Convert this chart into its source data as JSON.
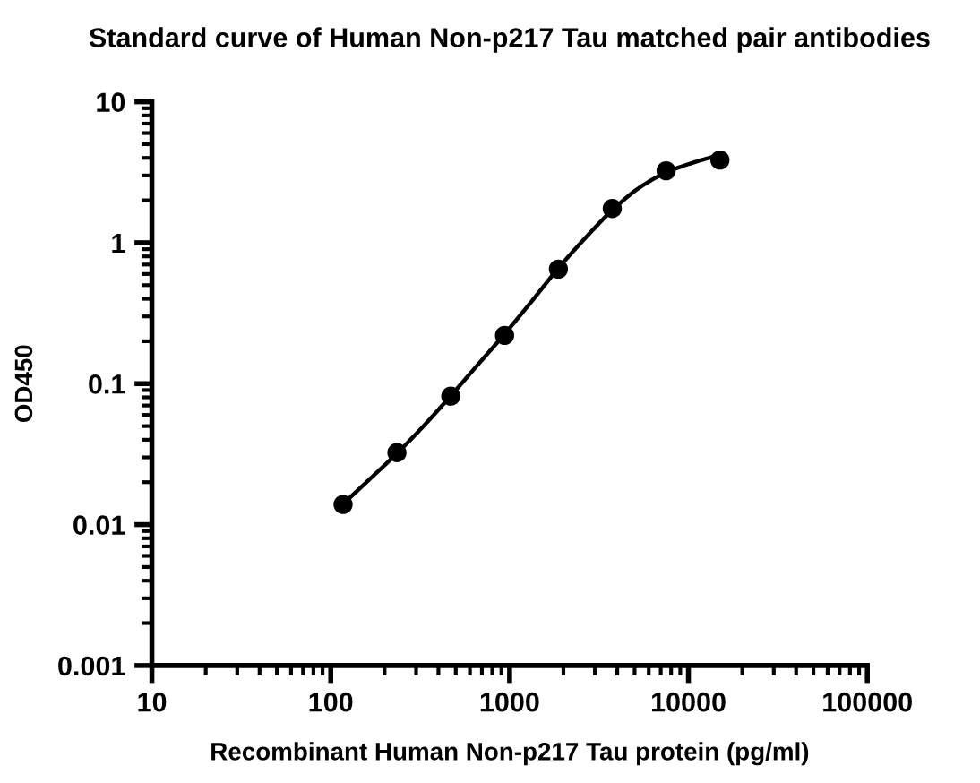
{
  "chart_data": {
    "type": "scatter",
    "title": "Standard curve of Human Non-p217 Tau matched pair antibodies",
    "xlabel": "Recombinant Human Non-p217 Tau protein (pg/ml)",
    "ylabel": "OD450",
    "log": "xy",
    "grid": false,
    "legend": false,
    "xlim": [
      10,
      100000
    ],
    "xticks": [
      10,
      100,
      1000,
      10000,
      100000
    ],
    "ylim": [
      0.001,
      10
    ],
    "yticks": [
      0.001,
      0.01,
      0.1,
      1,
      10
    ],
    "series": [
      {
        "marker": "circle",
        "color": "#000000",
        "x": [
          117.2,
          234.4,
          468.8,
          937.5,
          1875,
          3750,
          7500,
          15000
        ],
        "values": [
          0.0139,
          0.0324,
          0.0815,
          0.22,
          0.65,
          1.75,
          3.24,
          3.86
        ]
      },
      {
        "type": "line",
        "color": "#000000",
        "line_style": "solid",
        "x": [
          117.2,
          165,
          234.4,
          330,
          468.8,
          660,
          937.5,
          1320,
          1875,
          2650,
          3750,
          5300,
          7500,
          10600,
          15000
        ],
        "values": [
          0.014,
          0.021,
          0.032,
          0.05,
          0.082,
          0.135,
          0.225,
          0.38,
          0.66,
          1.08,
          1.7,
          2.45,
          3.15,
          3.7,
          4.2
        ]
      }
    ]
  }
}
